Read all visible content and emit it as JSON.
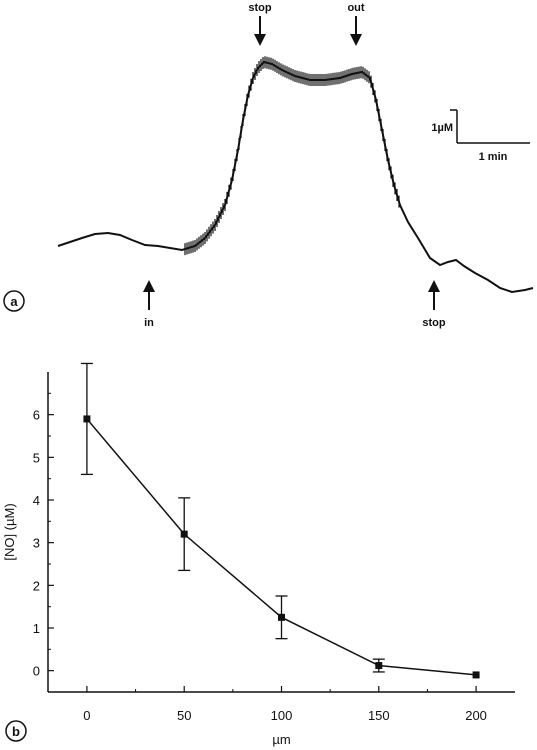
{
  "panel_a": {
    "label": "a",
    "arrows": {
      "in": "in",
      "stop_top": "stop",
      "out": "out",
      "stop_bottom": "stop"
    },
    "scale_bar": {
      "y_label": "1µM",
      "x_label": "1 min"
    }
  },
  "panel_b": {
    "label": "b"
  },
  "chart_data": [
    {
      "type": "line",
      "panel": "a",
      "description_free": true,
      "annotations": [
        "stop",
        "out",
        "in",
        "stop"
      ],
      "scale_bar": {
        "y": "1µM",
        "x": "1 min"
      }
    },
    {
      "type": "line",
      "panel": "b",
      "x": [
        0,
        50,
        100,
        150,
        200
      ],
      "values": [
        5.9,
        3.2,
        1.25,
        0.12,
        -0.1
      ],
      "error": [
        1.3,
        0.85,
        0.5,
        0.15,
        0
      ],
      "xlabel": "µm",
      "ylabel": "[NO] (µM)",
      "xlim": [
        -20,
        220
      ],
      "ylim": [
        -0.5,
        7
      ],
      "xticks": [
        "0",
        "50",
        "100",
        "150",
        "200"
      ],
      "yticks": [
        "0",
        "1",
        "2",
        "3",
        "4",
        "5",
        "6"
      ],
      "grid": false
    }
  ]
}
